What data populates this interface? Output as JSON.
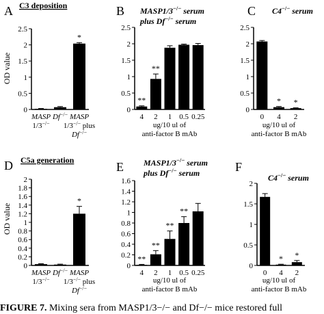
{
  "caption": {
    "label": "FIGURE 7.",
    "text": "Mixing sera from MASP1/3−/− and Df−/− mice restored full"
  },
  "chart_data": [
    {
      "panel": "A",
      "type": "bar",
      "title": "C3 deposition",
      "ylabel": "OD value",
      "ylim": [
        0,
        2.5
      ],
      "yticks": [
        0,
        0.5,
        1,
        1.5,
        2,
        2.5
      ],
      "yticklabels": [
        "0",
        "0.5",
        "1",
        "1.5",
        "2",
        "2.5"
      ],
      "categories": [
        [
          "MASP",
          "1/3−/−"
        ],
        [
          "Df−/−"
        ],
        [
          "MASP",
          "1/3−/− plus",
          "Df−/−"
        ]
      ],
      "values": [
        0.02,
        0.07,
        2.04
      ],
      "errors": [
        0.01,
        0.02,
        0.03
      ],
      "significance": [
        "",
        "",
        "*"
      ],
      "xlabel": []
    },
    {
      "panel": "B",
      "type": "bar",
      "title": [
        "MASP1/3−/− serum",
        "plus Df−/− serum"
      ],
      "ylim": [
        0,
        2.5
      ],
      "yticks": [
        0,
        0.5,
        1,
        1.5,
        2,
        2.5
      ],
      "yticklabels": [
        "0",
        "0.5",
        "1",
        "1.5",
        "2",
        "2.5"
      ],
      "categories": [
        "4",
        "2",
        "1",
        "0.5",
        "0.25"
      ],
      "values": [
        0.09,
        0.93,
        1.88,
        1.97,
        1.96
      ],
      "errors": [
        0.02,
        0.15,
        0.06,
        0.02,
        0.05
      ],
      "significance": [
        "**",
        "**",
        "",
        "",
        ""
      ],
      "xlabel": [
        "ug/10 ul of",
        "anti-factor B mAb"
      ]
    },
    {
      "panel": "C",
      "type": "bar",
      "title": "C4−/− serum",
      "ylim": [
        0,
        2.5
      ],
      "yticks": [
        0,
        0.5,
        1,
        1.5,
        2,
        2.5
      ],
      "yticklabels": [
        "0",
        "0.5",
        "1",
        "1.5",
        "2",
        "2.5"
      ],
      "categories": [
        "0",
        "4",
        "2"
      ],
      "values": [
        2.07,
        0.07,
        0.04
      ],
      "errors": [
        0.03,
        0.02,
        0.01
      ],
      "significance": [
        "",
        "*",
        "*"
      ],
      "xlabel": [
        "ug/10 ul of",
        "anti-factor B mAb"
      ]
    },
    {
      "panel": "D",
      "type": "bar",
      "title": "C5a generation",
      "ylabel": "OD value",
      "ylim": [
        0,
        2
      ],
      "yticks": [
        0,
        0.2,
        0.4,
        0.6,
        0.8,
        1,
        1.2,
        1.4,
        1.6,
        1.8,
        2
      ],
      "yticklabels": [
        "0",
        "0.2",
        "0.4",
        "0.6",
        "0.8",
        "1",
        "1.2",
        "1.4",
        "1.6",
        "1.8",
        "2"
      ],
      "categories": [
        [
          "MASP",
          "1/3−/−"
        ],
        [
          "Df−/−"
        ],
        [
          "MASP",
          "1/3−/− plus",
          "Df−/−"
        ]
      ],
      "values": [
        0.03,
        0.02,
        1.2
      ],
      "errors": [
        0.01,
        0.01,
        0.17
      ],
      "significance": [
        "",
        "",
        "*"
      ],
      "xlabel": []
    },
    {
      "panel": "E",
      "type": "bar",
      "title": [
        "MASP1/3−/− serum",
        "plus Df−/− serum"
      ],
      "ylim": [
        0,
        1.6
      ],
      "yticks": [
        0,
        0.2,
        0.4,
        0.6,
        0.8,
        1,
        1.2,
        1.4,
        1.6
      ],
      "yticklabels": [
        "0",
        "0.2",
        "0.4",
        "0.6",
        "0.8",
        "1",
        "1.2",
        "1.4",
        "1.6"
      ],
      "categories": [
        "4",
        "2",
        "1",
        "0.5",
        "0.25"
      ],
      "values": [
        0.01,
        0.21,
        0.5,
        0.8,
        1.02
      ],
      "errors": [
        0.01,
        0.07,
        0.15,
        0.12,
        0.15
      ],
      "significance": [
        "**",
        "**",
        "**",
        "**",
        ""
      ],
      "xlabel": [
        "ug/10 ul of",
        "anti-factor B mAb"
      ]
    },
    {
      "panel": "F",
      "type": "bar",
      "title": "C4−/− serum",
      "ylim": [
        0,
        2
      ],
      "yticks": [
        0,
        0.5,
        1,
        1.5,
        2
      ],
      "yticklabels": [
        "0",
        "0.5",
        "1",
        "1.5",
        "2"
      ],
      "categories": [
        "0",
        "4",
        "2"
      ],
      "values": [
        1.67,
        0.02,
        0.08
      ],
      "errors": [
        0.08,
        0.01,
        0.04
      ],
      "significance": [
        "",
        "*",
        "*"
      ],
      "xlabel": [
        "ug/10 ul of",
        "anti-factor B mAb"
      ]
    }
  ]
}
